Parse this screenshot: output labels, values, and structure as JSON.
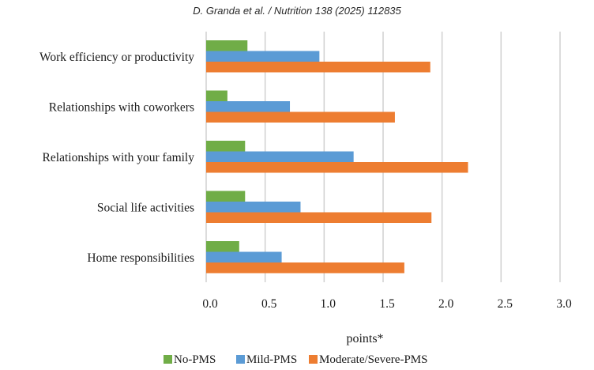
{
  "header": {
    "citation": "D. Granda et al. / Nutrition 138 (2025) 112835"
  },
  "chart_data": {
    "type": "bar",
    "orientation": "horizontal",
    "categories": [
      "Work efficiency or productivity",
      "Relationships with coworkers",
      "Relationships with your family",
      "Social life activities",
      "Home responsibilities"
    ],
    "series": [
      {
        "name": "No-PMS",
        "color": "#70ad47",
        "values": [
          0.35,
          0.18,
          0.33,
          0.33,
          0.28
        ]
      },
      {
        "name": "Mild-PMS",
        "color": "#5b9bd5",
        "values": [
          0.96,
          0.71,
          1.25,
          0.8,
          0.64
        ]
      },
      {
        "name": "Moderate/Severe-PMS",
        "color": "#ed7d31",
        "values": [
          1.9,
          1.6,
          2.22,
          1.91,
          1.68
        ]
      }
    ],
    "xlim": [
      0,
      3.0
    ],
    "xticks": [
      "0.0",
      "0.5",
      "1.0",
      "1.5",
      "2.0",
      "2.5",
      "3.0"
    ],
    "xlabel": "points*",
    "grid": "vertical",
    "legend_position": "bottom"
  }
}
